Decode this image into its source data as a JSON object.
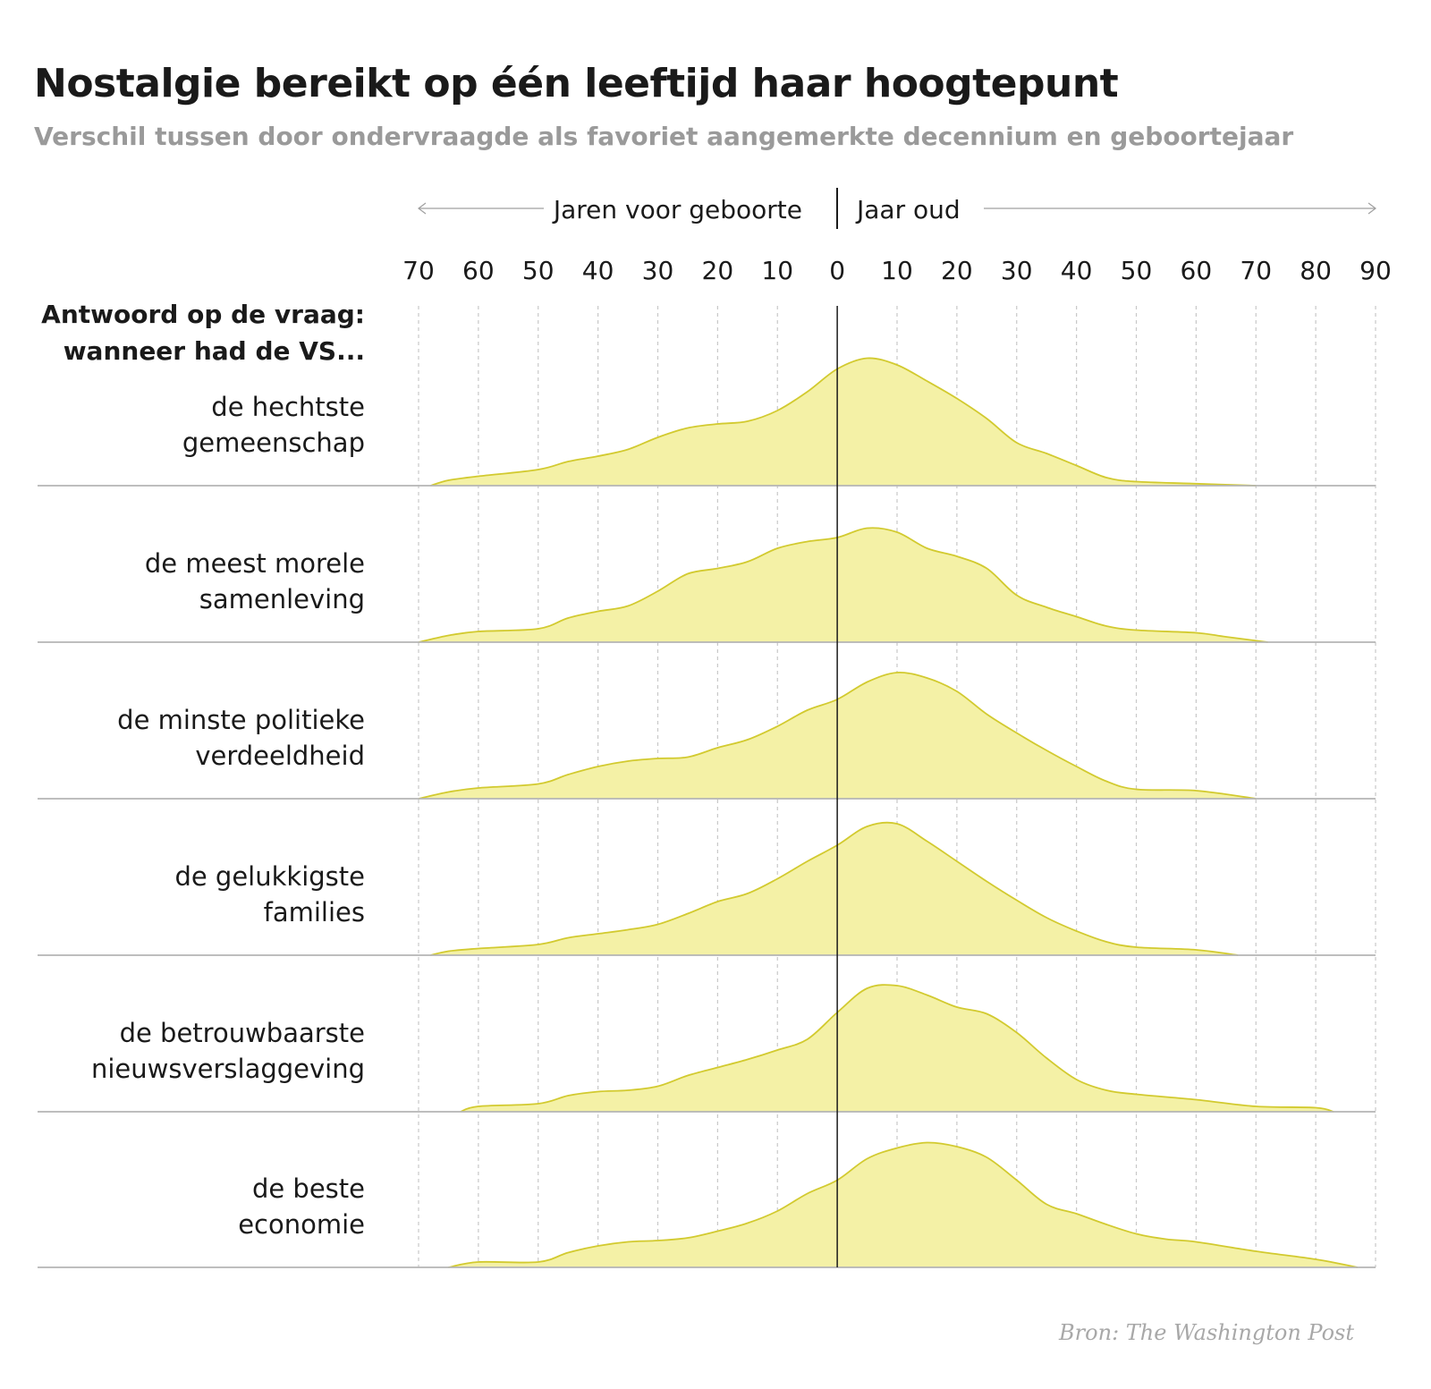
{
  "title": "Nostalgie bereikt op één leeftijd haar hoogtepunt",
  "subtitle": "Verschil tussen door ondervraagde als favoriet aangemerkte decennium en geboortejaar",
  "source": "Bron: The Washington Post",
  "colors": {
    "fill": "#f4f1a6",
    "stroke": "#d2ca2f",
    "baseline": "#b5b5b5",
    "grid": "#c8c8c8",
    "zero_line": "#1a1a1a",
    "arrow": "#9a9a9a"
  },
  "chart_data": {
    "type": "area",
    "direction_labels": {
      "left": "Jaren voor geboorte",
      "right": "Jaar oud"
    },
    "row_header": [
      "Antwoord op de vraag:",
      "wanneer had de VS..."
    ],
    "x_ticks": [
      {
        "value": -70,
        "label": "70"
      },
      {
        "value": -60,
        "label": "60"
      },
      {
        "value": -50,
        "label": "50"
      },
      {
        "value": -40,
        "label": "40"
      },
      {
        "value": -30,
        "label": "30"
      },
      {
        "value": -20,
        "label": "20"
      },
      {
        "value": -10,
        "label": "10"
      },
      {
        "value": 0,
        "label": "0"
      },
      {
        "value": 10,
        "label": "10"
      },
      {
        "value": 20,
        "label": "20"
      },
      {
        "value": 30,
        "label": "30"
      },
      {
        "value": 40,
        "label": "40"
      },
      {
        "value": 50,
        "label": "50"
      },
      {
        "value": 60,
        "label": "60"
      },
      {
        "value": 70,
        "label": "70"
      },
      {
        "value": 80,
        "label": "80"
      },
      {
        "value": 90,
        "label": "90"
      }
    ],
    "xlim": [
      -70,
      90
    ],
    "ylim": [
      0,
      1
    ],
    "grid": true,
    "series": [
      {
        "name": "de hechtste gemeenschap",
        "label_lines": [
          "de hechtste",
          "gemeenschap"
        ],
        "points": [
          [
            -68,
            0
          ],
          [
            -65,
            0.04
          ],
          [
            -60,
            0.07
          ],
          [
            -50,
            0.12
          ],
          [
            -45,
            0.18
          ],
          [
            -40,
            0.22
          ],
          [
            -35,
            0.27
          ],
          [
            -30,
            0.36
          ],
          [
            -25,
            0.43
          ],
          [
            -20,
            0.46
          ],
          [
            -15,
            0.48
          ],
          [
            -10,
            0.56
          ],
          [
            -5,
            0.7
          ],
          [
            0,
            0.87
          ],
          [
            5,
            0.95
          ],
          [
            10,
            0.9
          ],
          [
            15,
            0.78
          ],
          [
            20,
            0.65
          ],
          [
            25,
            0.5
          ],
          [
            30,
            0.32
          ],
          [
            35,
            0.24
          ],
          [
            40,
            0.15
          ],
          [
            45,
            0.06
          ],
          [
            50,
            0.03
          ],
          [
            60,
            0.015
          ],
          [
            70,
            0
          ]
        ]
      },
      {
        "name": "de meest morele samenleving",
        "label_lines": [
          "de meest morele",
          "samenleving"
        ],
        "points": [
          [
            -70,
            0
          ],
          [
            -65,
            0.05
          ],
          [
            -60,
            0.08
          ],
          [
            -50,
            0.1
          ],
          [
            -45,
            0.18
          ],
          [
            -40,
            0.23
          ],
          [
            -35,
            0.27
          ],
          [
            -30,
            0.38
          ],
          [
            -25,
            0.51
          ],
          [
            -20,
            0.55
          ],
          [
            -15,
            0.6
          ],
          [
            -10,
            0.7
          ],
          [
            -5,
            0.75
          ],
          [
            0,
            0.78
          ],
          [
            5,
            0.85
          ],
          [
            10,
            0.82
          ],
          [
            15,
            0.7
          ],
          [
            20,
            0.64
          ],
          [
            25,
            0.55
          ],
          [
            30,
            0.35
          ],
          [
            35,
            0.26
          ],
          [
            40,
            0.19
          ],
          [
            45,
            0.12
          ],
          [
            50,
            0.09
          ],
          [
            60,
            0.07
          ],
          [
            65,
            0.04
          ],
          [
            72,
            0
          ]
        ]
      },
      {
        "name": "de minste politieke verdeeldheid",
        "label_lines": [
          "de minste politieke",
          "verdeeldheid"
        ],
        "points": [
          [
            -70,
            0
          ],
          [
            -65,
            0.05
          ],
          [
            -60,
            0.08
          ],
          [
            -50,
            0.11
          ],
          [
            -45,
            0.18
          ],
          [
            -40,
            0.24
          ],
          [
            -35,
            0.28
          ],
          [
            -30,
            0.3
          ],
          [
            -25,
            0.31
          ],
          [
            -20,
            0.38
          ],
          [
            -15,
            0.44
          ],
          [
            -10,
            0.54
          ],
          [
            -5,
            0.66
          ],
          [
            0,
            0.74
          ],
          [
            5,
            0.87
          ],
          [
            10,
            0.94
          ],
          [
            15,
            0.9
          ],
          [
            20,
            0.8
          ],
          [
            25,
            0.63
          ],
          [
            30,
            0.49
          ],
          [
            35,
            0.36
          ],
          [
            40,
            0.24
          ],
          [
            45,
            0.13
          ],
          [
            50,
            0.07
          ],
          [
            60,
            0.06
          ],
          [
            70,
            0
          ]
        ]
      },
      {
        "name": "de gelukkigste families",
        "label_lines": [
          "de gelukkigste",
          "families"
        ],
        "points": [
          [
            -68,
            0
          ],
          [
            -65,
            0.03
          ],
          [
            -60,
            0.05
          ],
          [
            -50,
            0.08
          ],
          [
            -45,
            0.13
          ],
          [
            -40,
            0.16
          ],
          [
            -35,
            0.19
          ],
          [
            -30,
            0.23
          ],
          [
            -25,
            0.31
          ],
          [
            -20,
            0.4
          ],
          [
            -15,
            0.46
          ],
          [
            -10,
            0.57
          ],
          [
            -5,
            0.7
          ],
          [
            0,
            0.82
          ],
          [
            5,
            0.96
          ],
          [
            10,
            0.98
          ],
          [
            15,
            0.85
          ],
          [
            20,
            0.7
          ],
          [
            25,
            0.55
          ],
          [
            30,
            0.41
          ],
          [
            35,
            0.28
          ],
          [
            40,
            0.18
          ],
          [
            45,
            0.1
          ],
          [
            50,
            0.06
          ],
          [
            60,
            0.04
          ],
          [
            67,
            0
          ]
        ]
      },
      {
        "name": "de betrouwbaarste nieuwsverslaggeving",
        "label_lines": [
          "de betrouwbaarste",
          "nieuwsverslaggeving"
        ],
        "points": [
          [
            -63,
            0
          ],
          [
            -60,
            0.04
          ],
          [
            -50,
            0.06
          ],
          [
            -45,
            0.12
          ],
          [
            -40,
            0.15
          ],
          [
            -35,
            0.16
          ],
          [
            -30,
            0.19
          ],
          [
            -25,
            0.27
          ],
          [
            -20,
            0.33
          ],
          [
            -15,
            0.39
          ],
          [
            -10,
            0.46
          ],
          [
            -5,
            0.54
          ],
          [
            0,
            0.74
          ],
          [
            5,
            0.92
          ],
          [
            10,
            0.94
          ],
          [
            15,
            0.87
          ],
          [
            20,
            0.78
          ],
          [
            25,
            0.73
          ],
          [
            30,
            0.59
          ],
          [
            35,
            0.4
          ],
          [
            40,
            0.24
          ],
          [
            45,
            0.16
          ],
          [
            50,
            0.13
          ],
          [
            60,
            0.09
          ],
          [
            70,
            0.04
          ],
          [
            80,
            0.03
          ],
          [
            83,
            0
          ]
        ]
      },
      {
        "name": "de beste economie",
        "label_lines": [
          "de beste",
          "economie"
        ],
        "points": [
          [
            -65,
            0
          ],
          [
            -60,
            0.04
          ],
          [
            -50,
            0.04
          ],
          [
            -45,
            0.11
          ],
          [
            -40,
            0.16
          ],
          [
            -35,
            0.19
          ],
          [
            -30,
            0.2
          ],
          [
            -25,
            0.22
          ],
          [
            -20,
            0.27
          ],
          [
            -15,
            0.33
          ],
          [
            -10,
            0.42
          ],
          [
            -5,
            0.55
          ],
          [
            0,
            0.65
          ],
          [
            5,
            0.81
          ],
          [
            10,
            0.89
          ],
          [
            15,
            0.93
          ],
          [
            20,
            0.9
          ],
          [
            25,
            0.82
          ],
          [
            30,
            0.65
          ],
          [
            35,
            0.47
          ],
          [
            40,
            0.4
          ],
          [
            45,
            0.32
          ],
          [
            50,
            0.25
          ],
          [
            55,
            0.21
          ],
          [
            60,
            0.19
          ],
          [
            70,
            0.12
          ],
          [
            80,
            0.06
          ],
          [
            87,
            0
          ]
        ]
      }
    ]
  }
}
